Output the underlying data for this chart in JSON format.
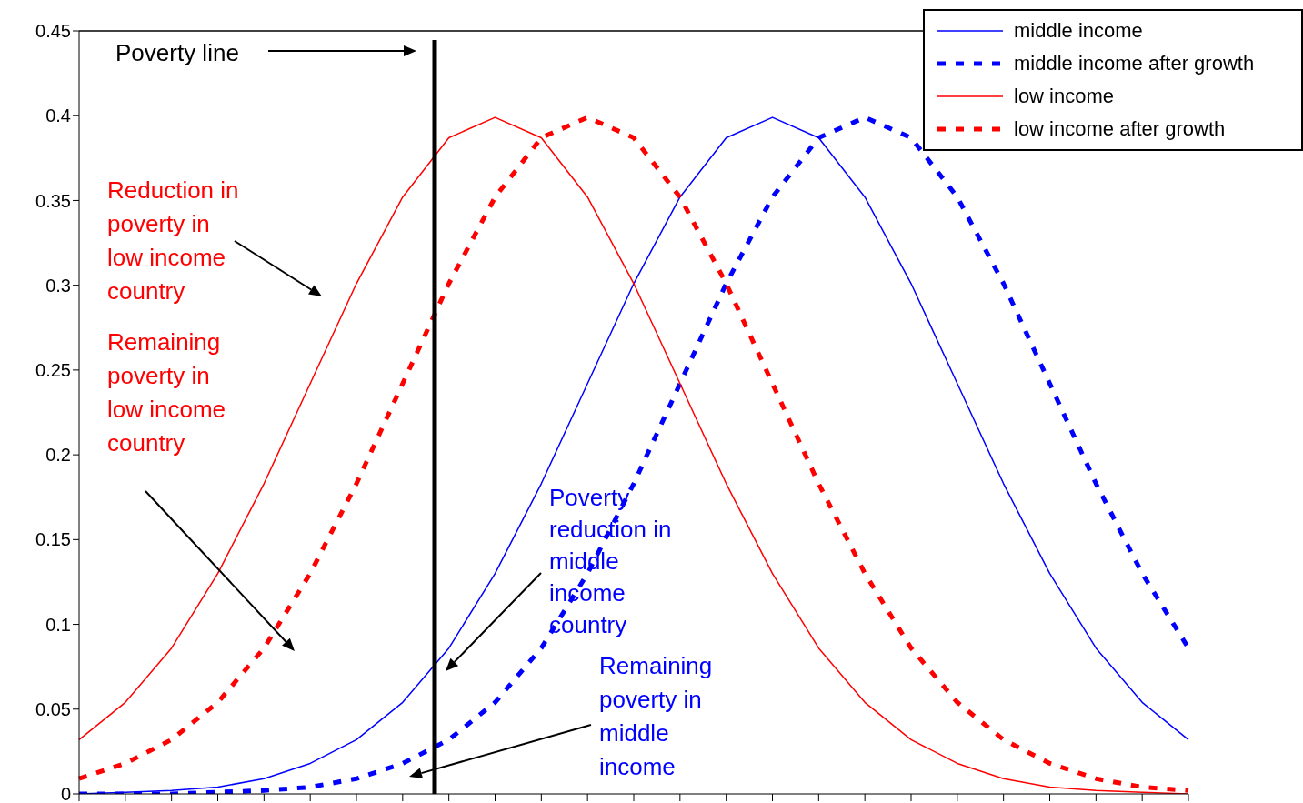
{
  "chart_data": {
    "type": "line",
    "categories": [
      null,
      null,
      null,
      null,
      null,
      null,
      null,
      null,
      null,
      null,
      null,
      null,
      null,
      null,
      null,
      null,
      null,
      null,
      null,
      null,
      null,
      null,
      null,
      null,
      null
    ],
    "ylim": [
      0,
      0.45
    ],
    "yticks": [
      0,
      0.05,
      0.1,
      0.15,
      0.2,
      0.25,
      0.3,
      0.35,
      0.4,
      0.45
    ],
    "grid": false,
    "legend": "top right",
    "marker": "none",
    "series": [
      {
        "name": "middle income",
        "color": "#0000ff",
        "line_style": "solid",
        "values": [
          0.0,
          0.001,
          0.002,
          0.004,
          0.009,
          0.018,
          0.032,
          0.054,
          0.086,
          0.13,
          0.183,
          0.242,
          0.301,
          0.352,
          0.387,
          0.399,
          0.387,
          0.352,
          0.301,
          0.242,
          0.183,
          0.13,
          0.086,
          0.054,
          0.032
        ]
      },
      {
        "name": "middle income after growth",
        "color": "#0000ff",
        "line_style": "dashed",
        "values": [
          0.0,
          0.0,
          0.0,
          0.001,
          0.002,
          0.004,
          0.009,
          0.018,
          0.032,
          0.054,
          0.086,
          0.13,
          0.183,
          0.242,
          0.301,
          0.352,
          0.387,
          0.399,
          0.387,
          0.352,
          0.301,
          0.242,
          0.183,
          0.13,
          0.086
        ]
      },
      {
        "name": "low income",
        "color": "#ff0000",
        "line_style": "solid",
        "values": [
          0.032,
          0.054,
          0.086,
          0.13,
          0.183,
          0.242,
          0.301,
          0.352,
          0.387,
          0.399,
          0.387,
          0.352,
          0.301,
          0.242,
          0.183,
          0.13,
          0.086,
          0.054,
          0.032,
          0.018,
          0.009,
          0.004,
          0.002,
          0.001,
          0.0
        ]
      },
      {
        "name": "low income after growth",
        "color": "#ff0000",
        "line_style": "dashed",
        "values": [
          0.009,
          0.018,
          0.032,
          0.054,
          0.086,
          0.13,
          0.183,
          0.242,
          0.301,
          0.352,
          0.387,
          0.399,
          0.387,
          0.352,
          0.301,
          0.242,
          0.183,
          0.13,
          0.086,
          0.054,
          0.032,
          0.018,
          0.009,
          0.004,
          0.002
        ]
      }
    ],
    "annotations": [
      "Poverty line",
      "Reduction in poverty in low income country",
      "Remaining poverty in low income country",
      "Poverty reduction in middle income country",
      "Remaining poverty in middle income"
    ]
  }
}
